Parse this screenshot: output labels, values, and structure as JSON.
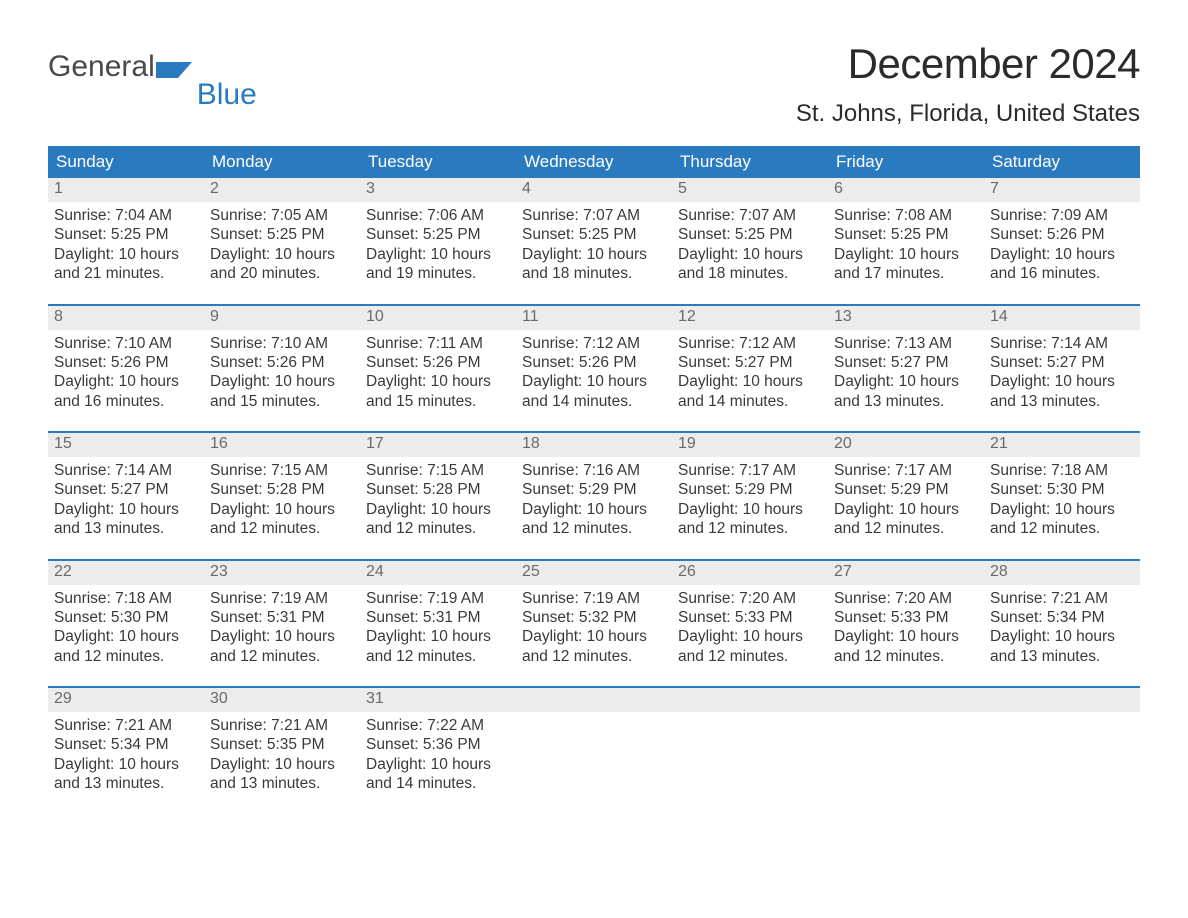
{
  "colors": {
    "header_bg": "#2a7ac0",
    "header_text": "#ffffff",
    "daynum_bg": "#ececec",
    "daynum_text": "#6a6a6a",
    "body_text": "#3a3a3a",
    "week_divider": "#2a7ac0",
    "page_bg": "#ffffff",
    "logo_gray": "#4a4a4a",
    "logo_blue": "#2a7ac0"
  },
  "typography": {
    "title_fontsize": 42,
    "location_fontsize": 24,
    "dayheader_fontsize": 17,
    "daynum_fontsize": 16,
    "body_fontsize": 15.5,
    "font_family": "Arial"
  },
  "logo": {
    "text1": "General",
    "text2": "Blue"
  },
  "title": "December 2024",
  "location": "St. Johns, Florida, United States",
  "day_names": [
    "Sunday",
    "Monday",
    "Tuesday",
    "Wednesday",
    "Thursday",
    "Friday",
    "Saturday"
  ],
  "weeks": [
    [
      {
        "n": "1",
        "sr": "Sunrise: 7:04 AM",
        "ss": "Sunset: 5:25 PM",
        "dl": "Daylight: 10 hours and 21 minutes."
      },
      {
        "n": "2",
        "sr": "Sunrise: 7:05 AM",
        "ss": "Sunset: 5:25 PM",
        "dl": "Daylight: 10 hours and 20 minutes."
      },
      {
        "n": "3",
        "sr": "Sunrise: 7:06 AM",
        "ss": "Sunset: 5:25 PM",
        "dl": "Daylight: 10 hours and 19 minutes."
      },
      {
        "n": "4",
        "sr": "Sunrise: 7:07 AM",
        "ss": "Sunset: 5:25 PM",
        "dl": "Daylight: 10 hours and 18 minutes."
      },
      {
        "n": "5",
        "sr": "Sunrise: 7:07 AM",
        "ss": "Sunset: 5:25 PM",
        "dl": "Daylight: 10 hours and 18 minutes."
      },
      {
        "n": "6",
        "sr": "Sunrise: 7:08 AM",
        "ss": "Sunset: 5:25 PM",
        "dl": "Daylight: 10 hours and 17 minutes."
      },
      {
        "n": "7",
        "sr": "Sunrise: 7:09 AM",
        "ss": "Sunset: 5:26 PM",
        "dl": "Daylight: 10 hours and 16 minutes."
      }
    ],
    [
      {
        "n": "8",
        "sr": "Sunrise: 7:10 AM",
        "ss": "Sunset: 5:26 PM",
        "dl": "Daylight: 10 hours and 16 minutes."
      },
      {
        "n": "9",
        "sr": "Sunrise: 7:10 AM",
        "ss": "Sunset: 5:26 PM",
        "dl": "Daylight: 10 hours and 15 minutes."
      },
      {
        "n": "10",
        "sr": "Sunrise: 7:11 AM",
        "ss": "Sunset: 5:26 PM",
        "dl": "Daylight: 10 hours and 15 minutes."
      },
      {
        "n": "11",
        "sr": "Sunrise: 7:12 AM",
        "ss": "Sunset: 5:26 PM",
        "dl": "Daylight: 10 hours and 14 minutes."
      },
      {
        "n": "12",
        "sr": "Sunrise: 7:12 AM",
        "ss": "Sunset: 5:27 PM",
        "dl": "Daylight: 10 hours and 14 minutes."
      },
      {
        "n": "13",
        "sr": "Sunrise: 7:13 AM",
        "ss": "Sunset: 5:27 PM",
        "dl": "Daylight: 10 hours and 13 minutes."
      },
      {
        "n": "14",
        "sr": "Sunrise: 7:14 AM",
        "ss": "Sunset: 5:27 PM",
        "dl": "Daylight: 10 hours and 13 minutes."
      }
    ],
    [
      {
        "n": "15",
        "sr": "Sunrise: 7:14 AM",
        "ss": "Sunset: 5:27 PM",
        "dl": "Daylight: 10 hours and 13 minutes."
      },
      {
        "n": "16",
        "sr": "Sunrise: 7:15 AM",
        "ss": "Sunset: 5:28 PM",
        "dl": "Daylight: 10 hours and 12 minutes."
      },
      {
        "n": "17",
        "sr": "Sunrise: 7:15 AM",
        "ss": "Sunset: 5:28 PM",
        "dl": "Daylight: 10 hours and 12 minutes."
      },
      {
        "n": "18",
        "sr": "Sunrise: 7:16 AM",
        "ss": "Sunset: 5:29 PM",
        "dl": "Daylight: 10 hours and 12 minutes."
      },
      {
        "n": "19",
        "sr": "Sunrise: 7:17 AM",
        "ss": "Sunset: 5:29 PM",
        "dl": "Daylight: 10 hours and 12 minutes."
      },
      {
        "n": "20",
        "sr": "Sunrise: 7:17 AM",
        "ss": "Sunset: 5:29 PM",
        "dl": "Daylight: 10 hours and 12 minutes."
      },
      {
        "n": "21",
        "sr": "Sunrise: 7:18 AM",
        "ss": "Sunset: 5:30 PM",
        "dl": "Daylight: 10 hours and 12 minutes."
      }
    ],
    [
      {
        "n": "22",
        "sr": "Sunrise: 7:18 AM",
        "ss": "Sunset: 5:30 PM",
        "dl": "Daylight: 10 hours and 12 minutes."
      },
      {
        "n": "23",
        "sr": "Sunrise: 7:19 AM",
        "ss": "Sunset: 5:31 PM",
        "dl": "Daylight: 10 hours and 12 minutes."
      },
      {
        "n": "24",
        "sr": "Sunrise: 7:19 AM",
        "ss": "Sunset: 5:31 PM",
        "dl": "Daylight: 10 hours and 12 minutes."
      },
      {
        "n": "25",
        "sr": "Sunrise: 7:19 AM",
        "ss": "Sunset: 5:32 PM",
        "dl": "Daylight: 10 hours and 12 minutes."
      },
      {
        "n": "26",
        "sr": "Sunrise: 7:20 AM",
        "ss": "Sunset: 5:33 PM",
        "dl": "Daylight: 10 hours and 12 minutes."
      },
      {
        "n": "27",
        "sr": "Sunrise: 7:20 AM",
        "ss": "Sunset: 5:33 PM",
        "dl": "Daylight: 10 hours and 12 minutes."
      },
      {
        "n": "28",
        "sr": "Sunrise: 7:21 AM",
        "ss": "Sunset: 5:34 PM",
        "dl": "Daylight: 10 hours and 13 minutes."
      }
    ],
    [
      {
        "n": "29",
        "sr": "Sunrise: 7:21 AM",
        "ss": "Sunset: 5:34 PM",
        "dl": "Daylight: 10 hours and 13 minutes."
      },
      {
        "n": "30",
        "sr": "Sunrise: 7:21 AM",
        "ss": "Sunset: 5:35 PM",
        "dl": "Daylight: 10 hours and 13 minutes."
      },
      {
        "n": "31",
        "sr": "Sunrise: 7:22 AM",
        "ss": "Sunset: 5:36 PM",
        "dl": "Daylight: 10 hours and 14 minutes."
      },
      null,
      null,
      null,
      null
    ]
  ]
}
